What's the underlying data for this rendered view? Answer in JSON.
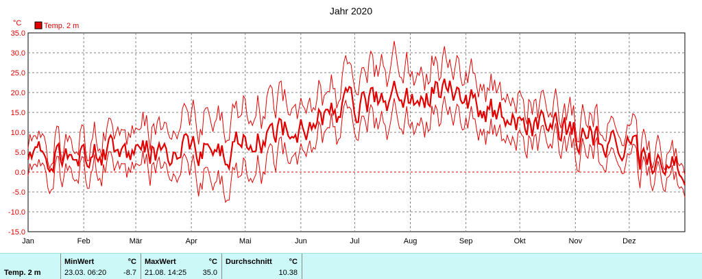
{
  "chart_data": {
    "type": "line",
    "title": "Jahr 2020",
    "ylabel": "°C",
    "ylim": [
      -15,
      35
    ],
    "yticks": [
      35.0,
      30.0,
      25.0,
      20.0,
      15.0,
      10.0,
      5.0,
      0.0,
      -5.0,
      -10.0,
      -15.0
    ],
    "xlim": [
      0,
      366
    ],
    "x_tick_labels": [
      "Jan",
      "Feb",
      "Mär",
      "Apr",
      "Mai",
      "Jun",
      "Jul",
      "Aug",
      "Sep",
      "Okt",
      "Nov",
      "Dez"
    ],
    "x_tick_days": [
      0,
      31,
      60,
      91,
      121,
      152,
      182,
      213,
      244,
      274,
      305,
      335
    ],
    "grid": true,
    "legend": {
      "position": "top-left",
      "entries": [
        "Temp. 2 m"
      ]
    },
    "series": [
      {
        "name": "Temp. 2 m",
        "monthly_daily_mean": [
          4,
          5,
          5,
          6,
          9,
          15,
          18,
          21,
          15,
          11,
          8,
          2
        ],
        "monthly_daily_max": [
          7,
          9,
          11,
          14,
          17,
          20,
          26,
          27,
          21,
          15,
          12,
          5
        ],
        "monthly_daily_min": [
          0,
          1,
          1,
          -2,
          3,
          11,
          12,
          15,
          10,
          7,
          4,
          -1
        ]
      }
    ],
    "colors": {
      "series": "#e00000",
      "grid": "#808080",
      "zero_line": "#e00000",
      "axis_text": "#e00000"
    }
  },
  "stats": {
    "series_label": "Temp. 2 m",
    "min": {
      "header": "MinWert",
      "unit": "°C",
      "datetime": "23.03.  06:20",
      "value": "-8.7"
    },
    "max": {
      "header": "MaxWert",
      "unit": "°C",
      "datetime": "21.08.  14:25",
      "value": "35.0"
    },
    "avg": {
      "header": "Durchschnitt",
      "unit": "°C",
      "value": "10.38"
    }
  }
}
